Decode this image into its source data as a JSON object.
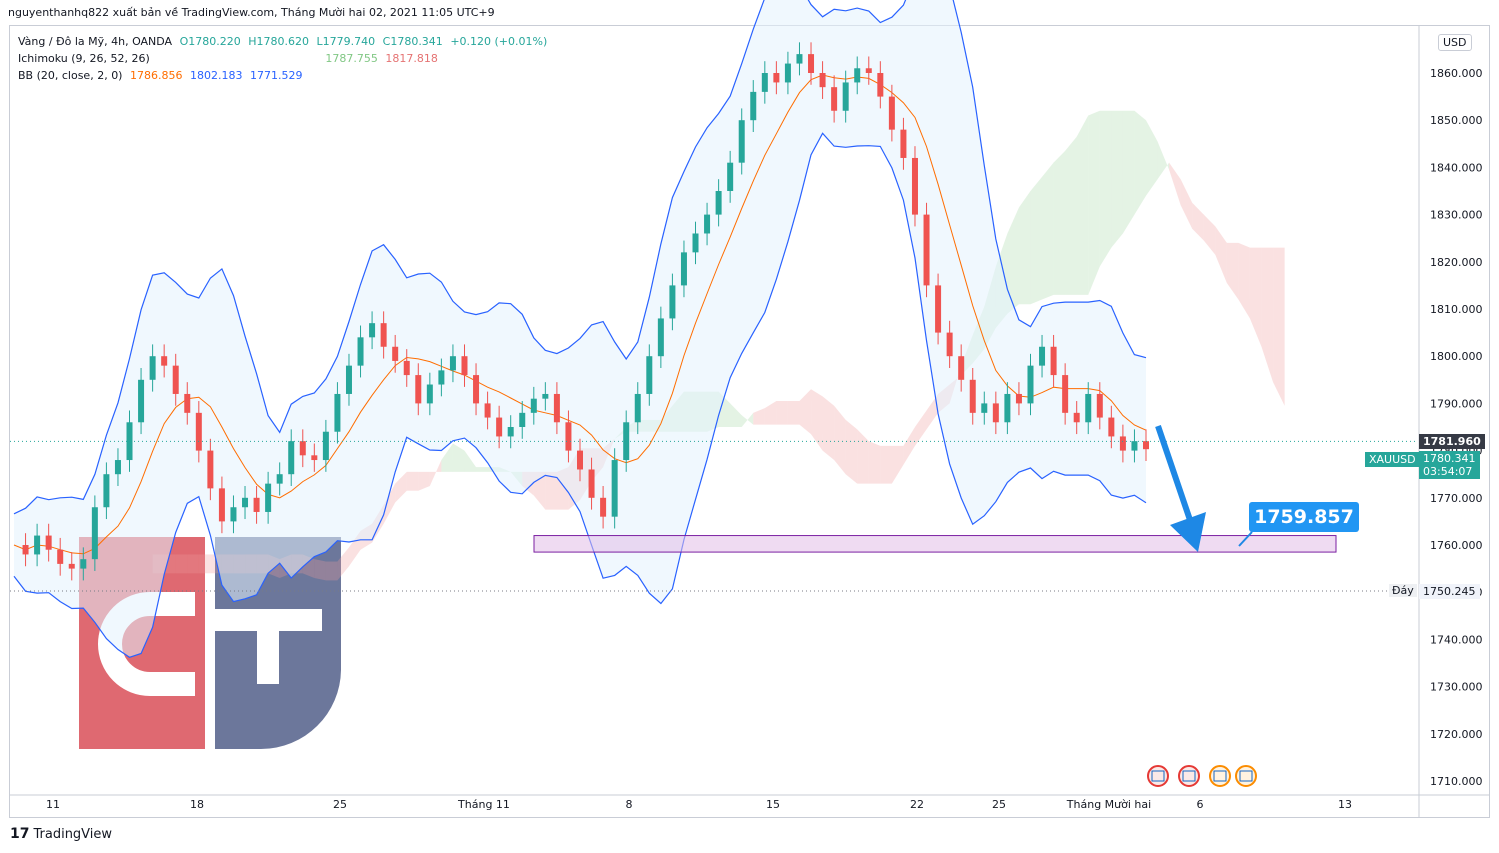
{
  "header": {
    "publisher_line": "nguyenthanhq822 xuất bản về TradingView.com, Tháng Mười hai 02, 2021 11:05 UTC+9"
  },
  "legend": {
    "symbol": "Vàng / Đô la Mỹ, 4h, OANDA",
    "open": "O1780.220",
    "high": "H1780.620",
    "low": "L1779.740",
    "close": "C1780.341",
    "change": "+0.120 (+0.01%)",
    "ichimoku_label": "Ichimoku (9, 26, 52, 26)",
    "ichimoku_a": "1787.755",
    "ichimoku_b": "1817.818",
    "bb_label": "BB (20, close, 2, 0)",
    "bb_basis": "1786.856",
    "bb_upper": "1802.183",
    "bb_lower": "1771.529"
  },
  "currency_button": "USD",
  "price_tags": {
    "ref_price": "1781.960",
    "symbol_tag": "XAUUSD",
    "last_price": "1780.341",
    "countdown": "03:54:07",
    "bottom_label": "Đáy",
    "bottom_price": "1750.245"
  },
  "annotation": {
    "target_price": "1759.857"
  },
  "footer": {
    "brand": "TradingView"
  },
  "colors": {
    "up": "#26a69a",
    "down": "#ef5350",
    "bb_upper_lower": "#2962ff",
    "bb_basis": "#ff6d00",
    "cloud_green": "#a5d6a7",
    "cloud_red": "#ef9a9a",
    "support_zone": "#e1bee7",
    "arrow": "#1e88e5",
    "logo_red": "#d32f3a",
    "logo_blue": "#3b4a7a"
  },
  "chart_data": {
    "type": "candlestick",
    "title": "",
    "xlabel": "",
    "ylabel": "",
    "ylim": [
      1705,
      1870
    ],
    "y_ticks": [
      "1860.000",
      "1850.000",
      "1840.000",
      "1830.000",
      "1820.000",
      "1810.000",
      "1800.000",
      "1790.000",
      "1780.000",
      "1770.000",
      "1760.000",
      "1750.000",
      "1740.000",
      "1730.000",
      "1720.000",
      "1710.000"
    ],
    "x_ticks": [
      "11",
      "18",
      "25",
      "Tháng 11",
      "8",
      "15",
      "22",
      "25",
      "Tháng Mười hai",
      "6",
      "13"
    ],
    "current_price": 1780.341,
    "reference_price": 1781.96,
    "bottom_level": 1750.245,
    "support_zone": [
      1758.5,
      1762.0
    ],
    "target": 1759.857,
    "close_series": [
      1760,
      1758,
      1762,
      1759,
      1756,
      1755,
      1757,
      1768,
      1775,
      1778,
      1786,
      1795,
      1800,
      1798,
      1792,
      1788,
      1780,
      1772,
      1765,
      1768,
      1770,
      1767,
      1773,
      1775,
      1782,
      1779,
      1778,
      1784,
      1792,
      1798,
      1804,
      1807,
      1802,
      1799,
      1796,
      1790,
      1794,
      1797,
      1800,
      1796,
      1790,
      1787,
      1783,
      1785,
      1788,
      1791,
      1792,
      1786,
      1780,
      1776,
      1770,
      1766,
      1778,
      1786,
      1792,
      1800,
      1808,
      1815,
      1822,
      1826,
      1830,
      1835,
      1841,
      1850,
      1856,
      1860,
      1858,
      1862,
      1864,
      1860,
      1857,
      1852,
      1858,
      1861,
      1860,
      1855,
      1848,
      1842,
      1830,
      1815,
      1805,
      1800,
      1795,
      1788,
      1790,
      1786,
      1792,
      1790,
      1798,
      1802,
      1796,
      1788,
      1786,
      1792,
      1787,
      1783,
      1780,
      1782,
      1780.3
    ]
  }
}
